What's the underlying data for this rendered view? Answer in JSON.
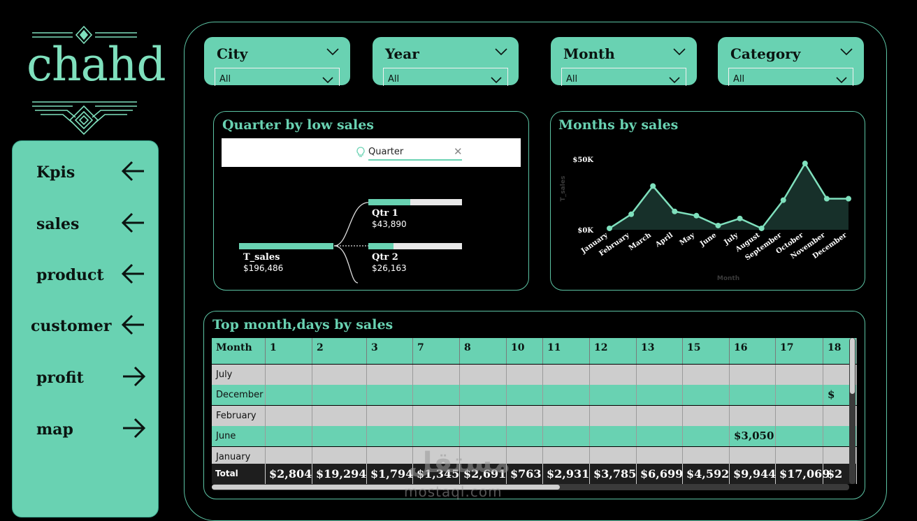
{
  "logo": {
    "text": "chahd"
  },
  "sidebar": {
    "items": [
      {
        "label": "Kpis",
        "arrow": "arrow-left-icon"
      },
      {
        "label": "sales",
        "arrow": "arrow-left-icon"
      },
      {
        "label": "product",
        "arrow": "arrow-left-icon"
      },
      {
        "label": "customer",
        "arrow": "arrow-left-icon"
      },
      {
        "label": "profit",
        "arrow": "arrow-right-icon"
      },
      {
        "label": "map",
        "arrow": "arrow-right-icon"
      }
    ]
  },
  "filters": [
    {
      "title": "City",
      "value": "All"
    },
    {
      "title": "Year",
      "value": "All"
    },
    {
      "title": "Month",
      "value": "All"
    },
    {
      "title": "Category",
      "value": "All"
    }
  ],
  "decomposition": {
    "title": "Quarter by low sales",
    "search_label": "Quarter",
    "root": {
      "name": "T_sales",
      "value": "$196,486"
    },
    "nodes": [
      {
        "name": "Qtr 1",
        "value": "$43,890",
        "fill": 0.45
      },
      {
        "name": "Qtr 2",
        "value": "$26,163",
        "fill": 0.27
      }
    ]
  },
  "months_chart": {
    "title": "Months by sales",
    "chart_data": {
      "type": "area",
      "title": "Months by sales",
      "xlabel": "Month",
      "ylabel": "T_sales",
      "ylim": [
        0,
        50000
      ],
      "yticks": [
        "$0K",
        "$50K"
      ],
      "categories": [
        "January",
        "February",
        "March",
        "April",
        "May",
        "June",
        "July",
        "August",
        "September",
        "October",
        "November",
        "December"
      ],
      "values": [
        1000,
        11000,
        31000,
        13000,
        10000,
        3000,
        8000,
        1000,
        21000,
        47000,
        22000,
        22000
      ],
      "grid": false
    }
  },
  "matrix": {
    "title": "Top month,days by sales",
    "row_header": "Month",
    "columns": [
      "1",
      "2",
      "3",
      "7",
      "8",
      "10",
      "11",
      "12",
      "13",
      "15",
      "16",
      "17",
      "18"
    ],
    "rows": [
      {
        "label": "July",
        "cells": {}
      },
      {
        "label": "December",
        "cells": {
          "18": "$"
        }
      },
      {
        "label": "February",
        "cells": {}
      },
      {
        "label": "June",
        "cells": {
          "16": "$3,050"
        }
      },
      {
        "label": "January",
        "cells": {}
      }
    ],
    "total_label": "Total",
    "totals": [
      "$2,804",
      "$19,294",
      "$1,794",
      "$1,345",
      "$2,691",
      "$763",
      "$2,931",
      "$3,785",
      "$6,699",
      "$4,592",
      "$9,944",
      "$17,069",
      "$2"
    ]
  },
  "watermark": {
    "text": "mostaql.com",
    "arabic": "مستقل"
  },
  "colors": {
    "accent": "#69d2b2",
    "background": "#000000",
    "line": "#7fe0bd",
    "area": "#17302a"
  }
}
